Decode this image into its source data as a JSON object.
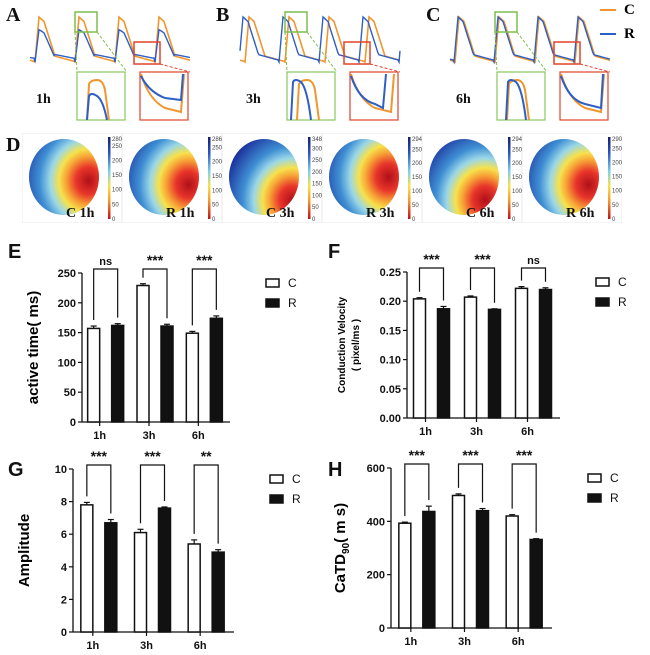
{
  "panels_traces": [
    {
      "letter": "A",
      "time": "1h"
    },
    {
      "letter": "B",
      "time": "3h"
    },
    {
      "letter": "C",
      "time": "6h"
    }
  ],
  "trace_legend": [
    {
      "label": "C",
      "color": "#f0962e"
    },
    {
      "label": "R",
      "color": "#2f5fc4"
    }
  ],
  "panel_d": {
    "letter": "D",
    "maps": [
      {
        "label": "C 1h",
        "max": "280",
        "ticks": [
          "250",
          "200",
          "150",
          "100",
          "50",
          "0"
        ]
      },
      {
        "label": "R 1h",
        "max": "286",
        "ticks": [
          "250",
          "200",
          "150",
          "100",
          "50",
          "0"
        ]
      },
      {
        "label": "C 3h",
        "max": "348",
        "ticks": [
          "300",
          "250",
          "200",
          "150",
          "100",
          "50",
          "0"
        ]
      },
      {
        "label": "R 3h",
        "max": "294",
        "ticks": [
          "250",
          "200",
          "150",
          "100",
          "50",
          "0"
        ]
      },
      {
        "label": "C 6h",
        "max": "294",
        "ticks": [
          "250",
          "200",
          "150",
          "100",
          "50",
          "0"
        ]
      },
      {
        "label": "R 6h",
        "max": "290",
        "ticks": [
          "250",
          "200",
          "150",
          "100",
          "50",
          "0"
        ]
      }
    ]
  },
  "chart_data": [
    {
      "panel": "E",
      "type": "bar",
      "categories": [
        "1h",
        "3h",
        "6h"
      ],
      "series": [
        {
          "name": "C",
          "values": [
            157,
            229,
            149
          ],
          "errors": [
            4,
            3,
            3
          ]
        },
        {
          "name": "R",
          "values": [
            162,
            161,
            174
          ],
          "errors": [
            3,
            3,
            4
          ]
        }
      ],
      "significance": [
        "ns",
        "***",
        "***"
      ],
      "ylabel": "active time( ms)",
      "ylim": [
        0,
        250
      ],
      "yticks": [
        "0",
        "50",
        "100",
        "150",
        "200",
        "250"
      ],
      "legend": "right"
    },
    {
      "panel": "F",
      "type": "bar",
      "categories": [
        "1h",
        "3h",
        "6h"
      ],
      "series": [
        {
          "name": "C",
          "values": [
            0.204,
            0.207,
            0.222
          ],
          "errors": [
            0.002,
            0.002,
            0.003
          ]
        },
        {
          "name": "R",
          "values": [
            0.187,
            0.186,
            0.22
          ],
          "errors": [
            0.004,
            0.001,
            0.003
          ]
        }
      ],
      "significance": [
        "***",
        "***",
        "ns"
      ],
      "ylabel": "Conduction Velocity",
      "ylabel2": "( pixel/ms )",
      "ylim": [
        0,
        0.25
      ],
      "yticks": [
        "0.00",
        "0.05",
        "0.10",
        "0.15",
        "0.20",
        "0.25"
      ],
      "legend": "right"
    },
    {
      "panel": "G",
      "type": "bar",
      "categories": [
        "1h",
        "3h",
        "6h"
      ],
      "series": [
        {
          "name": "C",
          "values": [
            7.8,
            6.1,
            5.4
          ],
          "errors": [
            0.15,
            0.2,
            0.25
          ]
        },
        {
          "name": "R",
          "values": [
            6.7,
            7.6,
            4.9
          ],
          "errors": [
            0.2,
            0.07,
            0.15
          ]
        }
      ],
      "significance": [
        "***",
        "***",
        "**"
      ],
      "ylabel": "Amplitude",
      "ylim": [
        0,
        10
      ],
      "yticks": [
        "0",
        "2",
        "4",
        "6",
        "8",
        "10"
      ],
      "legend": "right"
    },
    {
      "panel": "H",
      "type": "bar",
      "categories": [
        "1h",
        "3h",
        "6h"
      ],
      "series": [
        {
          "name": "C",
          "values": [
            393,
            497,
            420
          ],
          "errors": [
            4,
            6,
            5
          ]
        },
        {
          "name": "R",
          "values": [
            437,
            440,
            332
          ],
          "errors": [
            20,
            8,
            3
          ]
        }
      ],
      "significance": [
        "***",
        "***",
        "***"
      ],
      "ylabel": "CaTD",
      "ylabel_sub": "90",
      "ylabel_unit": "( m s)",
      "ylim": [
        0,
        600
      ],
      "yticks": [
        "0",
        "200",
        "400",
        "600"
      ],
      "legend": "right"
    }
  ]
}
